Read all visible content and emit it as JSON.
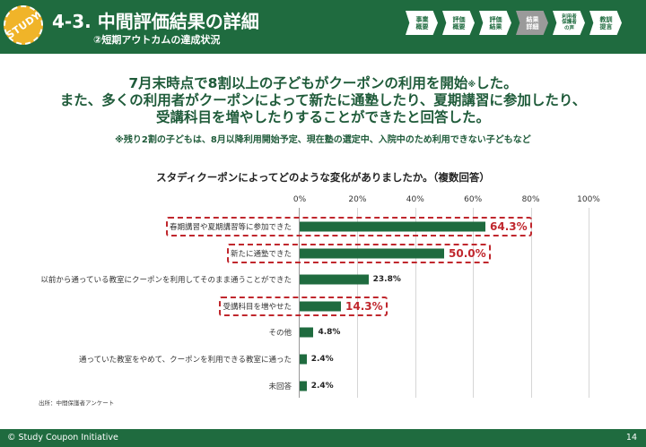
{
  "header": {
    "badge_text": "STUDY",
    "title": "4-3. 中間評価結果の詳細",
    "subtitle": "②短期アウトカムの達成状況",
    "nav": [
      {
        "label": "事業\n概要",
        "active": false,
        "small": false
      },
      {
        "label": "評価\n概要",
        "active": false,
        "small": false
      },
      {
        "label": "評価\n結果",
        "active": false,
        "small": false
      },
      {
        "label": "結果\n詳細",
        "active": true,
        "small": false
      },
      {
        "label": "利用者\n保護者\nの声",
        "active": false,
        "small": true
      },
      {
        "label": "教訓\n提言",
        "active": false,
        "small": false
      }
    ]
  },
  "headline": {
    "line1_a": "7月末時点で8割以上の子どもがクーポンの利用を開始",
    "line1_mark": "※",
    "line1_b": "した。",
    "line2": "また、多くの利用者がクーポンによって新たに通塾したり、夏期講習に参加したり、",
    "line3": "受講科目を増やしたりすることができたと回答した。",
    "note": "※残り2割の子どもは、8月以降利用開始予定、現在塾の選定中、入院中のため利用できない子どもなど"
  },
  "chart_data": {
    "type": "bar",
    "orientation": "horizontal",
    "title": "スタディクーポンによってどのような変化がありましたか。（複数回答）",
    "xlim": [
      0,
      100
    ],
    "ticks": [
      "0%",
      "20%",
      "40%",
      "60%",
      "80%",
      "100%"
    ],
    "grid": true,
    "categories": [
      "春期講習や夏期講習等に参加できた",
      "新たに通塾できた",
      "以前から通っている教室にクーポンを利用してそのまま通うことができた",
      "受講科目を増やせた",
      "その他",
      "通っていた教室をやめて、クーポンを利用できる教室に通った",
      "未回答"
    ],
    "values": [
      64.3,
      50.0,
      23.8,
      14.3,
      4.8,
      2.4,
      2.4
    ],
    "value_labels": [
      "64.3%",
      "50.0%",
      "23.8%",
      "14.3%",
      "4.8%",
      "2.4%",
      "2.4%"
    ],
    "highlighted": [
      true,
      true,
      false,
      true,
      false,
      false,
      false
    ],
    "bar_color": "#1f6b3f",
    "highlight_color": "#c0272d"
  },
  "source": "出所：中間保護者アンケート",
  "footer": {
    "copyright": "© Study Coupon Initiative",
    "page_number": "14"
  }
}
